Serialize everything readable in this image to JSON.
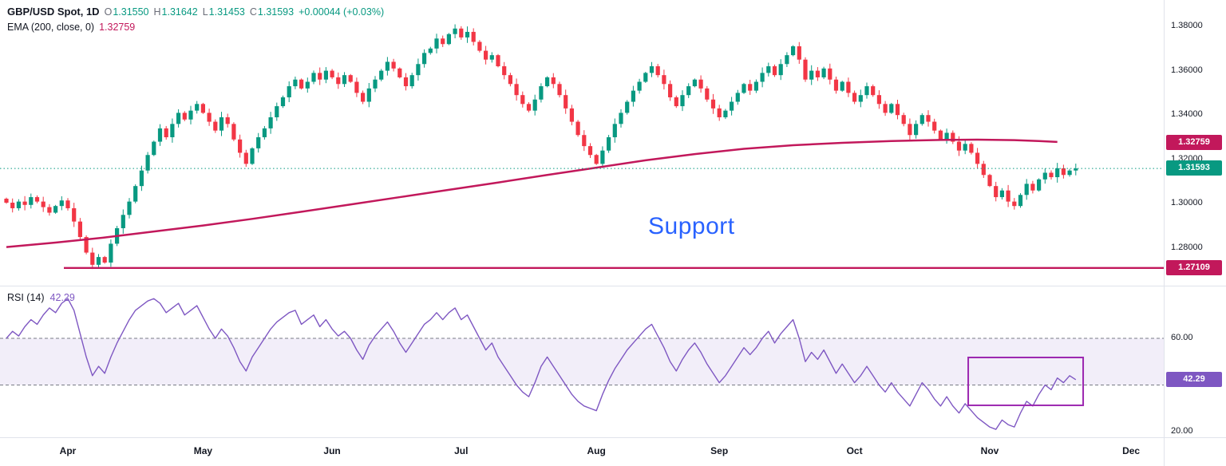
{
  "header": {
    "symbol": "GBP/USD Spot, 1D",
    "ohlc": {
      "o_label": "O",
      "o": "1.31550",
      "h_label": "H",
      "h": "1.31642",
      "l_label": "L",
      "l": "1.31453",
      "c_label": "C",
      "c": "1.31593",
      "change": "+0.00044 (+0.03%)"
    },
    "ema_label": "EMA (200, close, 0)",
    "ema_value": "1.32759"
  },
  "rsi_header": {
    "label": "RSI (14)",
    "value": "42.29"
  },
  "annotation": {
    "text": "Support"
  },
  "price_axis": {
    "ticks": [
      "1.38000",
      "1.36000",
      "1.34000",
      "1.32000",
      "1.30000",
      "1.28000"
    ],
    "ema_badge": "1.32759",
    "last_badge": "1.31593",
    "support_badge": "1.27109"
  },
  "rsi_axis": {
    "ticks": [
      "60.00",
      "20.00"
    ],
    "badge": "42.29"
  },
  "colors": {
    "up": "#089981",
    "down": "#F23645",
    "ema": "#C2185B",
    "rsi": "#7E57C2",
    "rsi_band_fill": "rgba(126,87,194,0.10)",
    "rsi_band_border": "#787B86",
    "annotation_blue": "#2962FF",
    "drawing_purple": "#9C27B0",
    "text": "#131722",
    "muted": "#6A6D78",
    "border": "#E0E3EB",
    "bg": "#FFFFFF"
  },
  "chart_data": {
    "type": "candlestick",
    "title": "GBP/USD Spot, 1D",
    "xlabel": "time (daily, Apr to Dec)",
    "ylabel": "price",
    "price_ticks": [
      1.38,
      1.36,
      1.34,
      1.32,
      1.3,
      1.28
    ],
    "price_range_visible": [
      1.268,
      1.385
    ],
    "last": {
      "open": 1.3155,
      "high": 1.31642,
      "low": 1.31453,
      "close": 1.31593,
      "change": 0.00044,
      "change_pct": 0.03
    },
    "ema200": {
      "period": 200,
      "source": "close",
      "offset": 0,
      "last": 1.32759,
      "points": [
        [
          0,
          1.2805
        ],
        [
          8,
          1.2825
        ],
        [
          16,
          1.2848
        ],
        [
          24,
          1.2875
        ],
        [
          32,
          1.2902
        ],
        [
          40,
          1.2932
        ],
        [
          48,
          1.2964
        ],
        [
          56,
          1.2997
        ],
        [
          64,
          1.303
        ],
        [
          72,
          1.3063
        ],
        [
          80,
          1.3096
        ],
        [
          88,
          1.313
        ],
        [
          96,
          1.3163
        ],
        [
          104,
          1.3196
        ],
        [
          112,
          1.3224
        ],
        [
          120,
          1.3248
        ],
        [
          128,
          1.3264
        ],
        [
          136,
          1.3275
        ],
        [
          144,
          1.3283
        ],
        [
          152,
          1.3288
        ],
        [
          158,
          1.3289
        ],
        [
          164,
          1.3287
        ],
        [
          168,
          1.3283
        ],
        [
          171,
          1.3279
        ]
      ]
    },
    "support_level": 1.27109,
    "closes": [
      1.3005,
      1.298,
      1.301,
      1.2995,
      1.303,
      1.301,
      1.2985,
      1.296,
      1.299,
      1.3015,
      1.298,
      1.292,
      1.285,
      1.278,
      1.2725,
      1.276,
      1.2735,
      1.282,
      1.289,
      1.295,
      1.301,
      1.308,
      1.315,
      1.322,
      1.328,
      1.334,
      1.33,
      1.336,
      1.341,
      1.338,
      1.342,
      1.345,
      1.341,
      1.337,
      1.333,
      1.339,
      1.336,
      1.329,
      1.323,
      1.318,
      1.325,
      1.33,
      1.334,
      1.339,
      1.344,
      1.348,
      1.353,
      1.356,
      1.352,
      1.355,
      1.359,
      1.356,
      1.36,
      1.357,
      1.354,
      1.358,
      1.355,
      1.35,
      1.346,
      1.352,
      1.356,
      1.36,
      1.364,
      1.361,
      1.357,
      1.353,
      1.358,
      1.363,
      1.368,
      1.37,
      1.3745,
      1.372,
      1.3765,
      1.379,
      1.375,
      1.3775,
      1.373,
      1.369,
      1.365,
      1.367,
      1.362,
      1.358,
      1.354,
      1.349,
      1.345,
      1.342,
      1.347,
      1.353,
      1.357,
      1.354,
      1.349,
      1.343,
      1.337,
      1.331,
      1.326,
      1.322,
      1.318,
      1.324,
      1.33,
      1.336,
      1.341,
      1.346,
      1.351,
      1.355,
      1.359,
      1.362,
      1.358,
      1.354,
      1.348,
      1.344,
      1.349,
      1.353,
      1.356,
      1.352,
      1.347,
      1.343,
      1.339,
      1.342,
      1.346,
      1.35,
      1.354,
      1.351,
      1.355,
      1.359,
      1.362,
      1.358,
      1.363,
      1.367,
      1.371,
      1.365,
      1.356,
      1.36,
      1.357,
      1.361,
      1.356,
      1.351,
      1.355,
      1.35,
      1.346,
      1.349,
      1.353,
      1.349,
      1.345,
      1.341,
      1.345,
      1.34,
      1.336,
      1.331,
      1.336,
      1.34,
      1.337,
      1.333,
      1.329,
      1.332,
      1.328,
      1.324,
      1.327,
      1.323,
      1.318,
      1.313,
      1.308,
      1.303,
      1.306,
      1.301,
      1.299,
      1.304,
      1.309,
      1.306,
      1.311,
      1.314,
      1.312,
      1.316,
      1.313,
      1.315,
      1.31593
    ],
    "rsi": {
      "period": 14,
      "last": 42.29,
      "bands": [
        40,
        60
      ],
      "ticks": [
        60,
        20
      ],
      "values": [
        60,
        63,
        61,
        65,
        68,
        66,
        70,
        73,
        71,
        75,
        77,
        72,
        62,
        52,
        44,
        48,
        45,
        52,
        58,
        63,
        68,
        72,
        74,
        76,
        77,
        75,
        71,
        73,
        75,
        70,
        72,
        74,
        69,
        64,
        60,
        64,
        61,
        56,
        50,
        46,
        52,
        56,
        60,
        64,
        67,
        69,
        71,
        72,
        66,
        68,
        70,
        65,
        68,
        64,
        61,
        63,
        60,
        55,
        51,
        57,
        61,
        64,
        67,
        63,
        58,
        54,
        58,
        62,
        66,
        68,
        71,
        68,
        71,
        73,
        68,
        70,
        65,
        60,
        55,
        58,
        52,
        48,
        44,
        40,
        37,
        35,
        41,
        48,
        52,
        48,
        44,
        40,
        36,
        33,
        31,
        30,
        29,
        36,
        42,
        47,
        51,
        55,
        58,
        61,
        64,
        66,
        61,
        56,
        50,
        46,
        51,
        55,
        58,
        54,
        49,
        45,
        41,
        44,
        48,
        52,
        56,
        53,
        56,
        60,
        63,
        58,
        62,
        65,
        68,
        60,
        50,
        54,
        51,
        55,
        50,
        45,
        49,
        45,
        41,
        44,
        48,
        44,
        40,
        37,
        41,
        37,
        34,
        31,
        36,
        41,
        38,
        34,
        31,
        35,
        31,
        28,
        32,
        29,
        26,
        24,
        22,
        21,
        25,
        23,
        22,
        28,
        33,
        31,
        36,
        40,
        38,
        43,
        41,
        44,
        42.29
      ]
    },
    "time_axis": {
      "months": [
        {
          "label": "Apr",
          "index": 10
        },
        {
          "label": "May",
          "index": 32
        },
        {
          "label": "Jun",
          "index": 53
        },
        {
          "label": "Jul",
          "index": 74
        },
        {
          "label": "Aug",
          "index": 96
        },
        {
          "label": "Sep",
          "index": 116
        },
        {
          "label": "Oct",
          "index": 138
        },
        {
          "label": "Nov",
          "index": 160
        },
        {
          "label": "Dec",
          "index": 183
        }
      ]
    },
    "annotations": {
      "support_text": "Support",
      "support_trendline_level": 1.27109,
      "rsi_box": {
        "from_index": 156.5,
        "to_index": 175.2,
        "top_value": 51.8,
        "bottom_value": 31.3
      }
    }
  }
}
